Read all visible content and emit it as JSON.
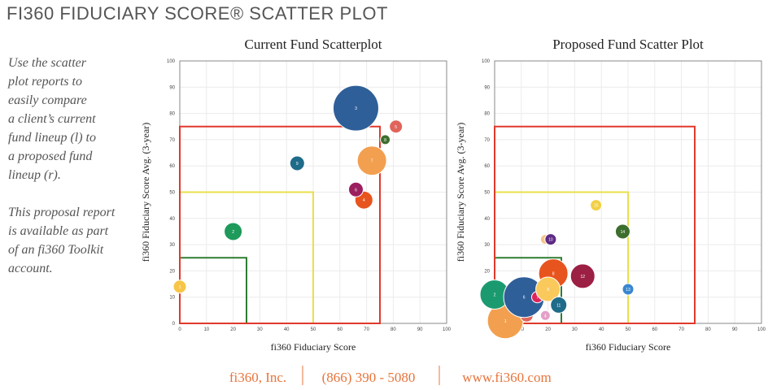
{
  "header": {
    "title": "FI360 FIDUCIARY SCORE® SCATTER PLOT"
  },
  "sidebar": {
    "paragraphs": [
      [
        "Use the scatter",
        "plot reports to",
        "easily compare",
        "a client’s current",
        "fund  lineup (l) to",
        "a proposed fund",
        "lineup (r)."
      ],
      [
        "This proposal report",
        "is available as part",
        "of an fi360 Toolkit",
        "account."
      ]
    ]
  },
  "chart_data": [
    {
      "type": "scatter",
      "title": "Current Fund Scatterplot",
      "x_label": "fi360 Fiduciary Score",
      "y_label": "fi360 Fiduciary Score Avg. (3-year)",
      "xlim": [
        0,
        100
      ],
      "ylim": [
        0,
        100
      ],
      "xticks": [
        0,
        10,
        20,
        30,
        40,
        50,
        60,
        70,
        80,
        90,
        100
      ],
      "yticks": [
        0,
        10,
        20,
        30,
        40,
        50,
        60,
        70,
        80,
        90,
        100
      ],
      "grid": true,
      "zones": [
        {
          "value": 25,
          "color": "#2e7d32"
        },
        {
          "value": 50,
          "color": "#e8e04a"
        },
        {
          "value": 75,
          "color": "#e0392b"
        }
      ],
      "labels": [
        "1",
        "2",
        "3",
        "4",
        "5",
        "6",
        "7",
        "8",
        "9"
      ],
      "x": [
        0,
        20,
        66,
        69,
        81,
        66,
        72,
        77,
        44
      ],
      "values": [
        14,
        35,
        82,
        47,
        75,
        51,
        62,
        70,
        61
      ],
      "sizes": [
        8,
        11,
        28,
        11,
        8,
        9,
        18,
        6,
        9
      ],
      "colors": [
        "#f7c548",
        "#1e9a5a",
        "#2f5f98",
        "#e8541e",
        "#e0645a",
        "#9c1f5f",
        "#f2a04f",
        "#3c6e2d",
        "#1f6b8a"
      ]
    },
    {
      "type": "scatter",
      "title": "Proposed Fund Scatter Plot",
      "x_label": "fi360 Fiduciary Score",
      "y_label": "fi360 Fiduciary Score Avg. (3-year)",
      "xlim": [
        0,
        100
      ],
      "ylim": [
        0,
        100
      ],
      "xticks": [
        0,
        10,
        20,
        30,
        40,
        50,
        60,
        70,
        80,
        90,
        100
      ],
      "yticks": [
        0,
        10,
        20,
        30,
        40,
        50,
        60,
        70,
        80,
        90,
        100
      ],
      "grid": true,
      "zones": [
        {
          "value": 25,
          "color": "#2e7d32"
        },
        {
          "value": 50,
          "color": "#e8e04a"
        },
        {
          "value": 75,
          "color": "#e0392b"
        }
      ],
      "labels": [
        "1",
        "2",
        "3",
        "4",
        "5",
        "6",
        "7",
        "8",
        "9",
        "10",
        "11",
        "12",
        "13",
        "14",
        "15"
      ],
      "x": [
        4,
        0,
        12,
        19,
        19,
        11,
        16,
        22,
        20,
        21,
        24,
        33,
        50,
        48,
        38
      ],
      "values": [
        1,
        11,
        3,
        3,
        32,
        10,
        10,
        19,
        13,
        32,
        7,
        18,
        13,
        35,
        45
      ],
      "sizes": [
        22,
        18,
        8,
        6,
        6,
        25,
        7,
        18,
        15,
        7,
        10,
        15,
        7,
        9,
        7
      ],
      "colors": [
        "#f2a04f",
        "#1b9a70",
        "#e0645a",
        "#e5a0c8",
        "#f7c58a",
        "#2f5f98",
        "#e0245a",
        "#e8541e",
        "#f9c95c",
        "#5e2a84",
        "#1f6b8a",
        "#9c1f44",
        "#3a86d0",
        "#3c6e2d",
        "#f2d046"
      ]
    }
  ],
  "footer": {
    "items": [
      "fi360, Inc.",
      "(866) 390 - 5080",
      "www.fi360.com"
    ]
  }
}
